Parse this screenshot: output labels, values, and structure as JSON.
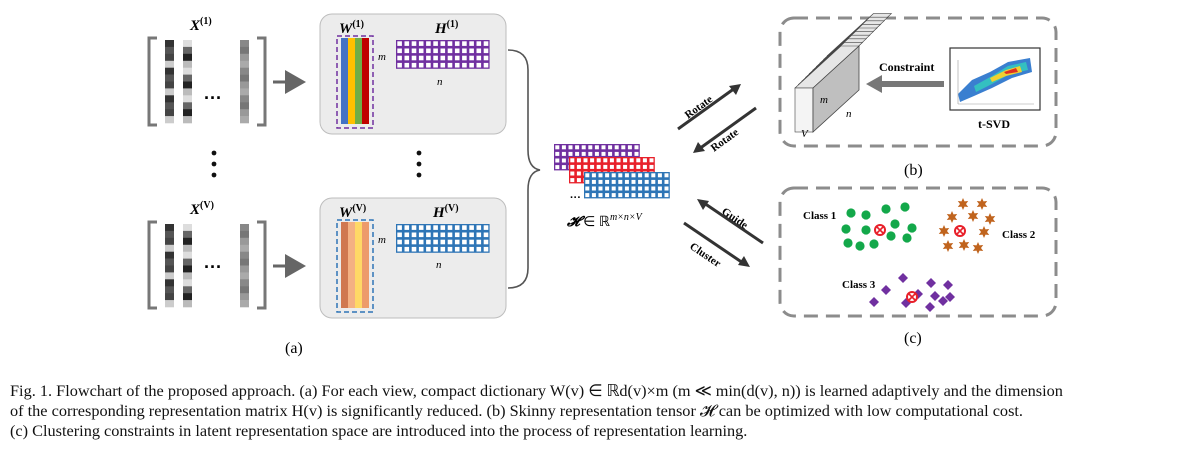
{
  "panel_a": {
    "view1_label_x": "X",
    "view1_label_sup": "(1)",
    "viewV_label_x": "X",
    "viewV_label_sup": "(V)",
    "w1_label": "W",
    "w1_sup": "(1)",
    "h1_label": "H",
    "h1_sup": "(1)",
    "wV_label": "W",
    "wV_sup": "(V)",
    "hV_label": "H",
    "hV_sup": "(V)",
    "m_label": "m",
    "n_label": "n",
    "dots_h": "···",
    "caption": "(a)"
  },
  "tensor": {
    "symbol": "𝓗",
    "space": " ∈ ℝ",
    "dims": "m×n×V",
    "dots": "···"
  },
  "panel_b": {
    "constraint_label": "Constraint",
    "tsvd_label": "t-SVD",
    "m_label": "m",
    "n_label": "n",
    "v_label": "V",
    "caption": "(b)"
  },
  "arrows": {
    "rotate_top": "Rotate",
    "rotate_bottom": "Rotate",
    "guide": "Guide",
    "cluster": "Cluster"
  },
  "panel_c": {
    "class1": "Class 1",
    "class2": "Class 2",
    "class3": "Class 3",
    "caption": "(c)"
  },
  "colors": {
    "purple": "#7030a0",
    "red": "#e8202a",
    "blue": "#2e75b6",
    "green": "#13a84a",
    "orange": "#c0641e",
    "violet": "#7030a0",
    "panel_bg": "#ececec",
    "dashed_gray": "#8c8c8c"
  },
  "caption": {
    "line1": "Fig. 1.  Flowchart of the proposed approach. (a) For each view, compact dictionary W(v) ∈ ℝd(v)×m (m ≪ min(d(v), n)) is learned adaptively and the dimension",
    "line2": "of the corresponding representation matrix H(v) is significantly reduced. (b) Skinny representation tensor 𝓗 can be optimized with low computational cost.",
    "line3": "(c) Clustering constraints in latent representation space are introduced into the process of representation learning."
  }
}
